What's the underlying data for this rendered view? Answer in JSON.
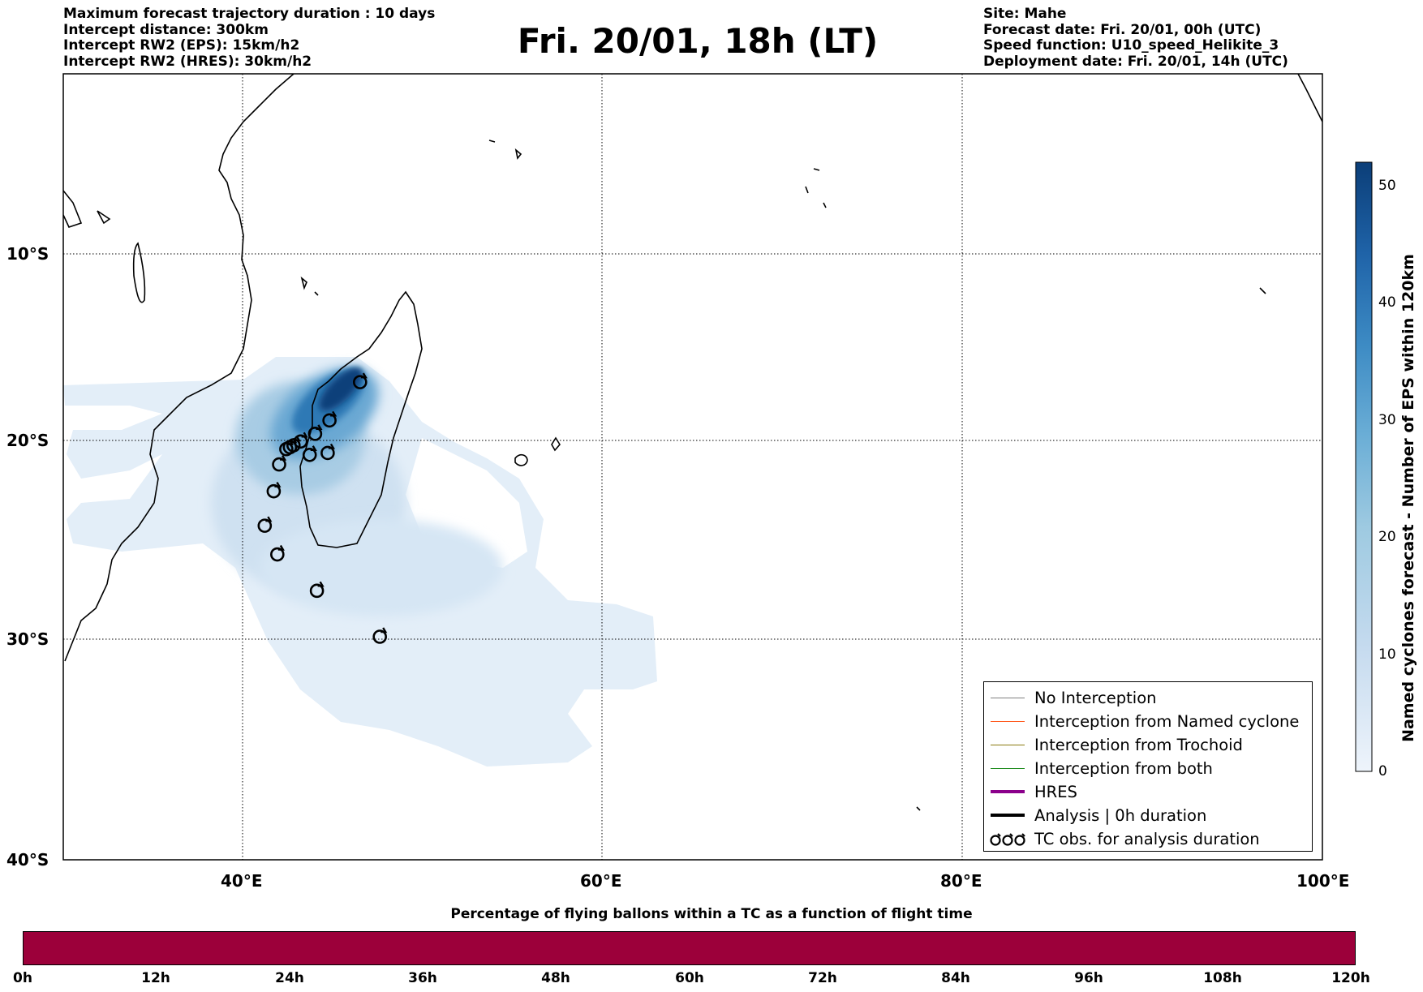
{
  "header_left": {
    "line1": "Maximum forecast trajectory duration : 10 days",
    "line2": "Intercept distance: 300km",
    "line3": "Intercept RW2 (EPS):  15km/h2",
    "line4": "Intercept RW2 (HRES): 30km/h2"
  },
  "title": "Fri. 20/01, 18h (LT)",
  "header_right": {
    "line1": "Site: Mahe",
    "line2": "Forecast date: Fri. 20/01, 00h (UTC)",
    "line3": "Speed function: U10_speed_Helikite_3",
    "line4": "Deployment date: Fri. 20/01, 14h (UTC)"
  },
  "map": {
    "lat_labels": [
      "10°S",
      "20°S",
      "30°S",
      "40°S"
    ],
    "lon_labels": [
      "40°E",
      "60°E",
      "80°E",
      "100°E"
    ],
    "colors": {
      "density_light": "#e3eef8",
      "density_mid": "#a8cce4",
      "density_dark": "#2f79b5",
      "density_max": "#0c3f7a",
      "coast": "#000000"
    },
    "tc_obs": [
      {
        "lon": 46.5,
        "lat": -16.7
      },
      {
        "lon": 44.8,
        "lat": -18.7
      },
      {
        "lon": 44.0,
        "lat": -19.4
      },
      {
        "lon": 43.2,
        "lat": -19.8
      },
      {
        "lon": 42.8,
        "lat": -20.0
      },
      {
        "lon": 42.6,
        "lat": -20.1
      },
      {
        "lon": 42.4,
        "lat": -20.2
      },
      {
        "lon": 43.7,
        "lat": -20.5
      },
      {
        "lon": 44.7,
        "lat": -20.4
      },
      {
        "lon": 42.0,
        "lat": -21.0
      },
      {
        "lon": 41.7,
        "lat": -22.4
      },
      {
        "lon": 41.2,
        "lat": -24.2
      },
      {
        "lon": 41.9,
        "lat": -25.7
      },
      {
        "lon": 44.1,
        "lat": -27.6
      },
      {
        "lon": 47.6,
        "lat": -30.0
      }
    ]
  },
  "legend": {
    "items": [
      {
        "label": "No Interception",
        "color": "#808080",
        "width": 1
      },
      {
        "label": "Interception from Named cyclone",
        "color": "#ff5a1f",
        "width": 1
      },
      {
        "label": "Interception from Trochoid",
        "color": "#8a7a10",
        "width": 1
      },
      {
        "label": "Interception from both",
        "color": "#1a8a1a",
        "width": 1
      },
      {
        "label": "HRES",
        "color": "#8b008b",
        "width": 4
      },
      {
        "label": "Analysis | 0h duration",
        "color": "#000000",
        "width": 4
      },
      {
        "label": "TC obs. for analysis duration",
        "color": "#000000",
        "width": 0,
        "glyph": "ʚʚʚ"
      }
    ]
  },
  "colorbar": {
    "label": "Named cyclones forecast - Number of EPS within 120km",
    "ticks": [
      "0",
      "10",
      "20",
      "30",
      "40",
      "50"
    ],
    "min": 0,
    "max": 52,
    "colors": [
      "#eef4fb",
      "#c6dbef",
      "#9ecae1",
      "#6baed6",
      "#3d8bc4",
      "#1f63a8",
      "#0b3e78"
    ]
  },
  "flight_bar": {
    "title": "Percentage of flying ballons within a TC as a function of flight time",
    "ticks": [
      "0h",
      "12h",
      "24h",
      "36h",
      "48h",
      "60h",
      "72h",
      "84h",
      "96h",
      "108h",
      "120h"
    ],
    "color": "#9c003a"
  }
}
